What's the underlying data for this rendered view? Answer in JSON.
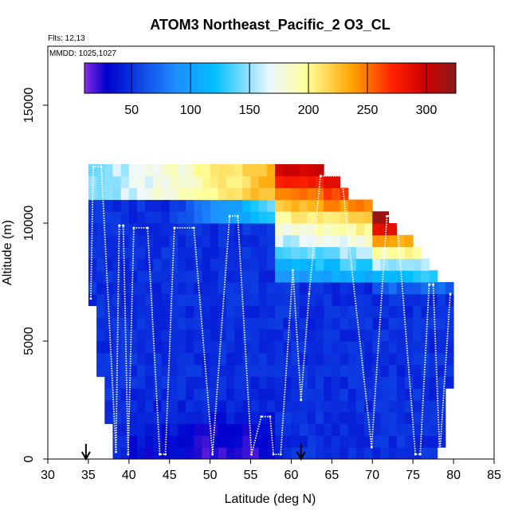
{
  "chart_data": {
    "type": "heatmap",
    "title": "ATOM3 Northeast_Pacific_2 O3_CL",
    "flights_label": "Flts: 12,13",
    "dates_label": "MMDD: 1025,1027",
    "xlabel": "Latitude (deg N)",
    "ylabel": "Altitude (m)",
    "xlim": [
      30,
      85
    ],
    "ylim": [
      0,
      17500
    ],
    "x_ticks": [
      "30",
      "35",
      "40",
      "45",
      "50",
      "55",
      "60",
      "65",
      "70",
      "75",
      "80",
      "85"
    ],
    "y_ticks": [
      "0",
      "5000",
      "10000",
      "15000"
    ],
    "colorbar": {
      "range": [
        10,
        325
      ],
      "tick_labels": [
        "50",
        "100",
        "150",
        "200",
        "250",
        "300"
      ],
      "tick_values": [
        50,
        100,
        150,
        200,
        250,
        300
      ]
    },
    "arrows_latitude": [
      34.7,
      61.2
    ],
    "grid": {
      "lat_start": 35.0,
      "lat_end": 80.0,
      "lat_step": 1.0,
      "alt_step": 500,
      "alt_max": 12500
    },
    "flight_track": [
      [
        35.3,
        6800
      ],
      [
        35.6,
        12400
      ],
      [
        36.6,
        12400
      ],
      [
        38.4,
        300
      ],
      [
        38.8,
        9900
      ],
      [
        39.3,
        9900
      ],
      [
        39.9,
        200
      ],
      [
        40.6,
        9800
      ],
      [
        42.3,
        9800
      ],
      [
        43.8,
        200
      ],
      [
        44.5,
        200
      ],
      [
        45.6,
        9800
      ],
      [
        48.0,
        9800
      ],
      [
        50.3,
        200
      ],
      [
        52.4,
        10300
      ],
      [
        53.4,
        10300
      ],
      [
        55.1,
        200
      ],
      [
        56.3,
        1800
      ],
      [
        57.4,
        1800
      ],
      [
        57.8,
        200
      ],
      [
        58.7,
        200
      ],
      [
        60.2,
        8000
      ],
      [
        61.2,
        2500
      ],
      [
        62.2,
        7000
      ],
      [
        63.6,
        12000
      ],
      [
        66.2,
        12000
      ],
      [
        69.9,
        500
      ],
      [
        71.8,
        10300
      ],
      [
        73.0,
        10300
      ],
      [
        75.3,
        200
      ],
      [
        75.9,
        200
      ],
      [
        77.0,
        7400
      ],
      [
        77.5,
        7400
      ],
      [
        78.3,
        200
      ],
      [
        79.6,
        7000
      ]
    ]
  }
}
